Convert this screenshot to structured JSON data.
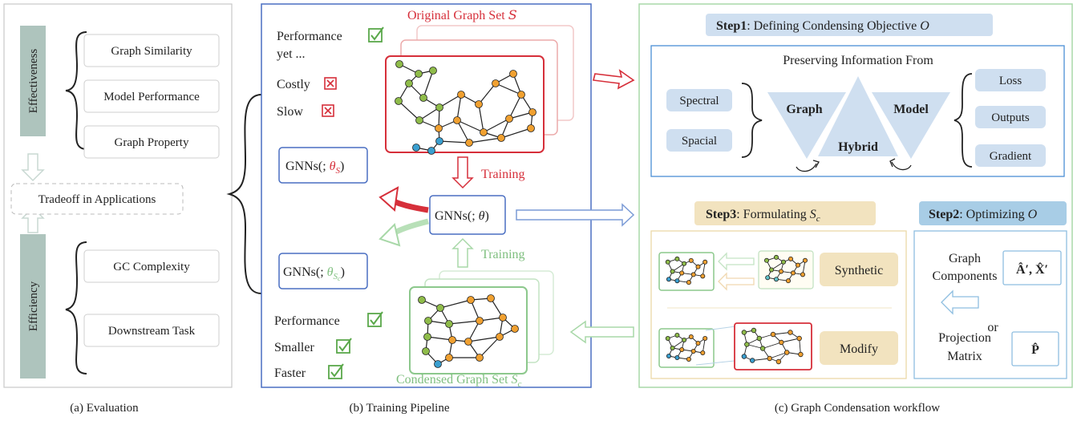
{
  "evaluation": {
    "caption": "(a) Evaluation",
    "effectiveness_label": "Effectiveness",
    "efficiency_label": "Efficiency",
    "effectiveness_items": [
      "Graph Similarity",
      "Model Performance",
      "Graph Property"
    ],
    "efficiency_items": [
      "GC Complexity",
      "Downstream Task"
    ],
    "tradeoff": "Tradeoff  in  Applications"
  },
  "pipeline": {
    "caption": "(b) Training Pipeline",
    "original_set_title": "Original Graph Set",
    "original_set_symbol": "S",
    "condensed_set_title": "Condensed Graph Set",
    "condensed_set_symbol": "S",
    "condensed_set_subscript": "c",
    "top_checks": {
      "performance": "Performance",
      "yet": "yet ...",
      "costly": "Costly",
      "slow": "Slow"
    },
    "bottom_checks": {
      "performance": "Performance",
      "smaller": "Smaller",
      "faster": "Faster"
    },
    "gnn_orig": {
      "prefix": "GNNs(; ",
      "theta": "θ",
      "sub": "S",
      "close": ")"
    },
    "gnn_mid": {
      "prefix": "GNNs(; ",
      "theta": "θ",
      "close": ")"
    },
    "gnn_cond": {
      "prefix": "GNNs(; ",
      "theta": "θ",
      "sub": "S",
      "subsub": "c",
      "close": ")"
    },
    "training_top": "Training",
    "training_bottom": "Training"
  },
  "workflow": {
    "caption": "(c) Graph Condensation workflow",
    "step1": {
      "bold": "Step1",
      "rest": ": Defining Condensing Objective",
      "symbol": "O"
    },
    "preserving": "Preserving Information From",
    "left_tags": [
      "Spectral",
      "Spacial"
    ],
    "triangles": {
      "graph": "Graph",
      "hybrid": "Hybrid",
      "model": "Model"
    },
    "right_tags": [
      "Loss",
      "Outputs",
      "Gradient"
    ],
    "step3": {
      "bold": "Step3",
      "rest": ": Formulating",
      "symbol": "S",
      "sub": "c"
    },
    "step2": {
      "bold": "Step2",
      "rest": ":  Optimizing",
      "symbol": "O"
    },
    "synthetic": "Synthetic",
    "modify": "Modify",
    "components": {
      "line1": "Graph",
      "line2": "Components",
      "formula": "Â′, X̂′"
    },
    "or": "or",
    "projection": {
      "line1": "Projection",
      "line2": "Matrix",
      "formula": "P̂"
    }
  },
  "colors": {
    "red": "#d62f3a",
    "green": "#7fbf7f",
    "blue": "#4a6fc2",
    "tag_blue": "#cfdff0",
    "tag_tan": "#f2e3bf",
    "node_green": "#8fbc4a",
    "node_orange": "#f0a030",
    "node_blue": "#3a9fd0"
  }
}
